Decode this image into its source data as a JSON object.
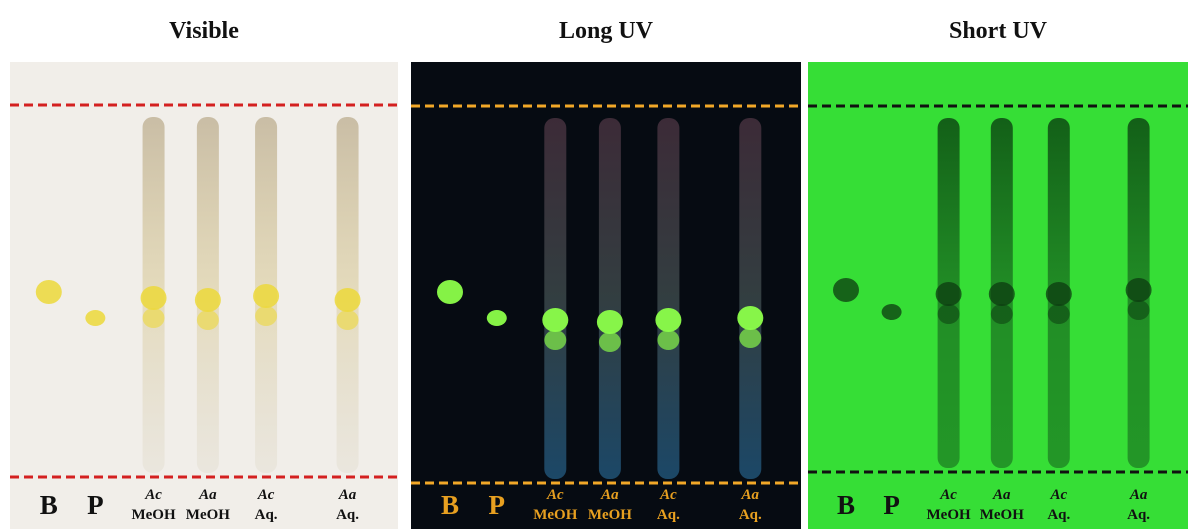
{
  "panels": [
    {
      "title": "Visible",
      "lanes": [
        {
          "label": "B"
        },
        {
          "label": "P"
        },
        {
          "species": "Ac",
          "solvent": "MeOH"
        },
        {
          "species": "Aa",
          "solvent": "MeOH"
        },
        {
          "species": "Ac",
          "solvent": "Aq."
        },
        {
          "species": "Aa",
          "solvent": "Aq."
        }
      ]
    },
    {
      "title": "Long UV",
      "lanes": [
        {
          "label": "B"
        },
        {
          "label": "P"
        },
        {
          "species": "Ac",
          "solvent": "MeOH"
        },
        {
          "species": "Aa",
          "solvent": "MeOH"
        },
        {
          "species": "Ac",
          "solvent": "Aq."
        },
        {
          "species": "Aa",
          "solvent": "Aq."
        }
      ]
    },
    {
      "title": "Short UV",
      "lanes": [
        {
          "label": "B"
        },
        {
          "label": "P"
        },
        {
          "species": "Ac",
          "solvent": "MeOH"
        },
        {
          "species": "Aa",
          "solvent": "MeOH"
        },
        {
          "species": "Ac",
          "solvent": "Aq."
        },
        {
          "species": "Aa",
          "solvent": "Aq."
        }
      ]
    }
  ]
}
